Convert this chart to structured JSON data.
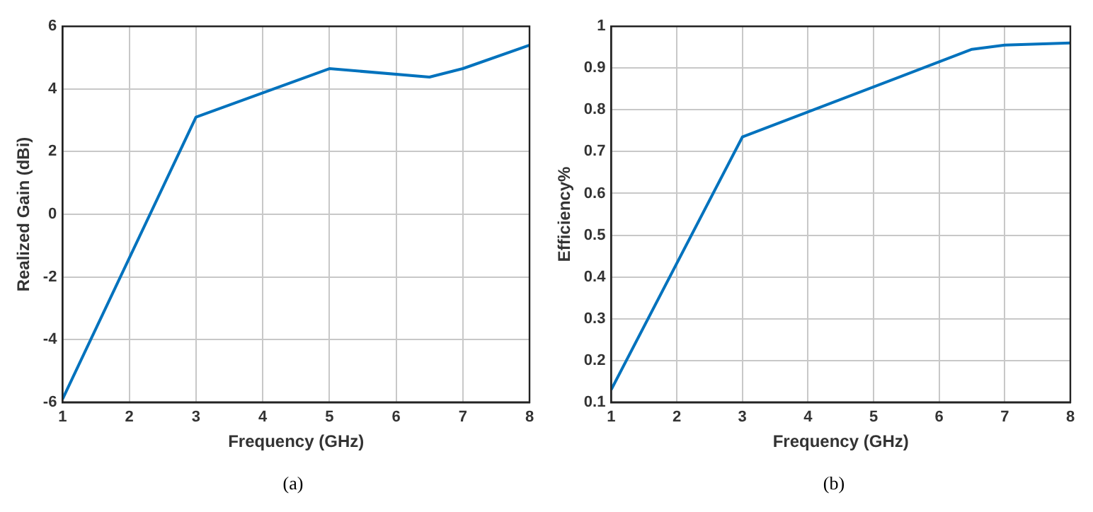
{
  "chart_data": [
    {
      "type": "line",
      "xlabel": "Frequency (GHz)",
      "ylabel": "Realized Gain (dBi)",
      "annotations": [
        "(a)"
      ],
      "xlim": [
        1,
        8
      ],
      "xticks": [
        1,
        2,
        3,
        4,
        5,
        6,
        7,
        8
      ],
      "ylim": [
        -6,
        6
      ],
      "yticks": [
        -6,
        -4,
        -2,
        0,
        2,
        4,
        6
      ],
      "grid": true,
      "legend": false,
      "marker": "none",
      "line_style": "solid",
      "series": [
        {
          "color": "#0072bd",
          "x": [
            1,
            3,
            5,
            6.5,
            7,
            8
          ],
          "values": [
            -5.9,
            3.1,
            4.65,
            4.38,
            4.65,
            5.4
          ]
        }
      ]
    },
    {
      "type": "line",
      "xlabel": "Frequency (GHz)",
      "ylabel": "Efficiency%",
      "annotations": [
        "(b)"
      ],
      "xlim": [
        1,
        8
      ],
      "xticks": [
        1,
        2,
        3,
        4,
        5,
        6,
        7,
        8
      ],
      "ylim": [
        0.1,
        1
      ],
      "yticks": [
        0.1,
        0.2,
        0.3,
        0.4,
        0.5,
        0.6,
        0.7,
        0.8,
        0.9,
        1
      ],
      "grid": true,
      "legend": false,
      "marker": "none",
      "line_style": "solid",
      "series": [
        {
          "color": "#0072bd",
          "x": [
            1,
            3,
            6.5,
            7,
            8
          ],
          "values": [
            0.13,
            0.735,
            0.945,
            0.955,
            0.96
          ]
        }
      ]
    }
  ]
}
